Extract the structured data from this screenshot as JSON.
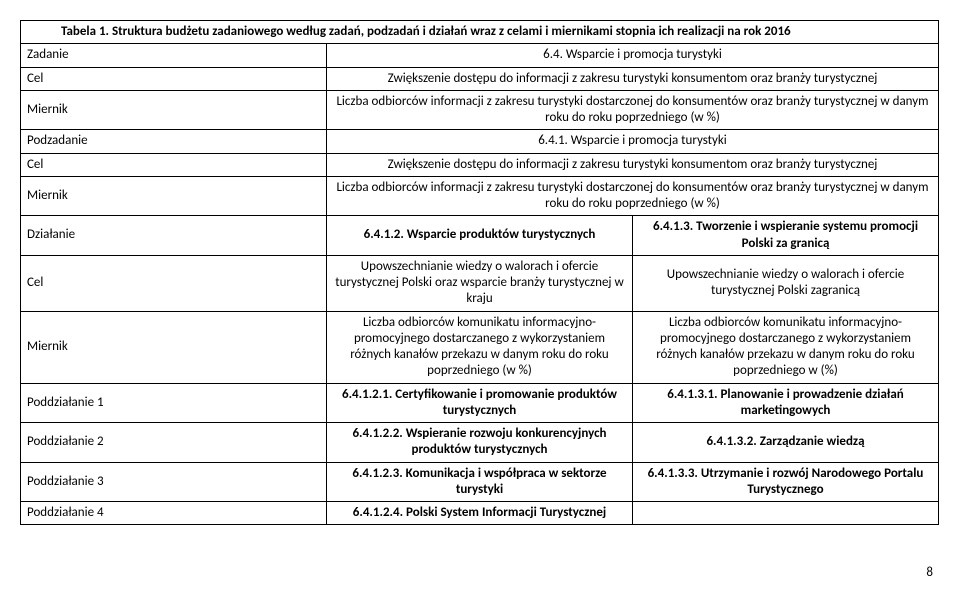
{
  "title": "Tabela 1. Struktura budżetu zadaniowego według zadań, podzadań i działań wraz z celami i miernikami stopnia ich realizacji na rok 2016",
  "zadanie": {
    "label": "Zadanie",
    "value": "6.4. Wsparcie i promocja turystyki"
  },
  "cel1": {
    "label": "Cel",
    "value": "Zwiększenie dostępu do informacji z zakresu turystyki konsumentom oraz branży turystycznej"
  },
  "miernik1": {
    "label": "Miernik",
    "value": "Liczba odbiorców informacji z zakresu turystyki dostarczonej do konsumentów oraz branży turystycznej  w danym roku do roku poprzedniego (w %)"
  },
  "podzadanie": {
    "label": "Podzadanie",
    "value": "6.4.1. Wsparcie i promocja turystyki"
  },
  "cel2": {
    "label": "Cel",
    "value": "Zwiększenie dostępu do informacji z zakresu turystyki konsumentom oraz branży turystycznej"
  },
  "miernik2": {
    "label": "Miernik",
    "value": "Liczba odbiorców informacji z zakresu turystyki dostarczonej do konsumentów oraz branży turystycznej  w danym roku do roku poprzedniego (w %)"
  },
  "dzialanie": {
    "label": "Działanie",
    "left": "6.4.1.2. Wsparcie produktów turystycznych",
    "right": "6.4.1.3. Tworzenie i wspieranie systemu promocji Polski za granicą"
  },
  "cel3": {
    "label": "Cel",
    "left": "Upowszechnianie wiedzy o walorach i ofercie turystycznej Polski oraz wsparcie branży turystycznej w kraju",
    "right": "Upowszechnianie wiedzy o walorach i ofercie turystycznej Polski zagranicą"
  },
  "miernik3": {
    "label": "Miernik",
    "left": "Liczba odbiorców komunikatu informacyjno-promocyjnego dostarczanego z wykorzystaniem różnych kanałów przekazu w danym roku do roku poprzedniego (w %)",
    "right": "Liczba odbiorców komunikatu informacyjno-promocyjnego dostarczanego z wykorzystaniem różnych kanałów przekazu w danym roku do roku poprzedniego w (%)"
  },
  "pod1": {
    "label": "Poddziałanie 1",
    "left": "6.4.1.2.1. Certyfikowanie i promowanie produktów turystycznych",
    "right": "6.4.1.3.1. Planowanie i prowadzenie działań marketingowych"
  },
  "pod2": {
    "label": "Poddziałanie 2",
    "left": "6.4.1.2.2. Wspieranie rozwoju konkurencyjnych produktów turystycznych",
    "right": "6.4.1.3.2. Zarządzanie wiedzą"
  },
  "pod3": {
    "label": "Poddziałanie 3",
    "left": "6.4.1.2.3. Komunikacja i współpraca w sektorze turystyki",
    "right": "6.4.1.3.3. Utrzymanie i rozwój Narodowego Portalu Turystycznego"
  },
  "pod4": {
    "label": "Poddziałanie 4",
    "left": "6.4.1.2.4. Polski System Informacji Turystycznej",
    "right": ""
  },
  "pageNumber": "8"
}
